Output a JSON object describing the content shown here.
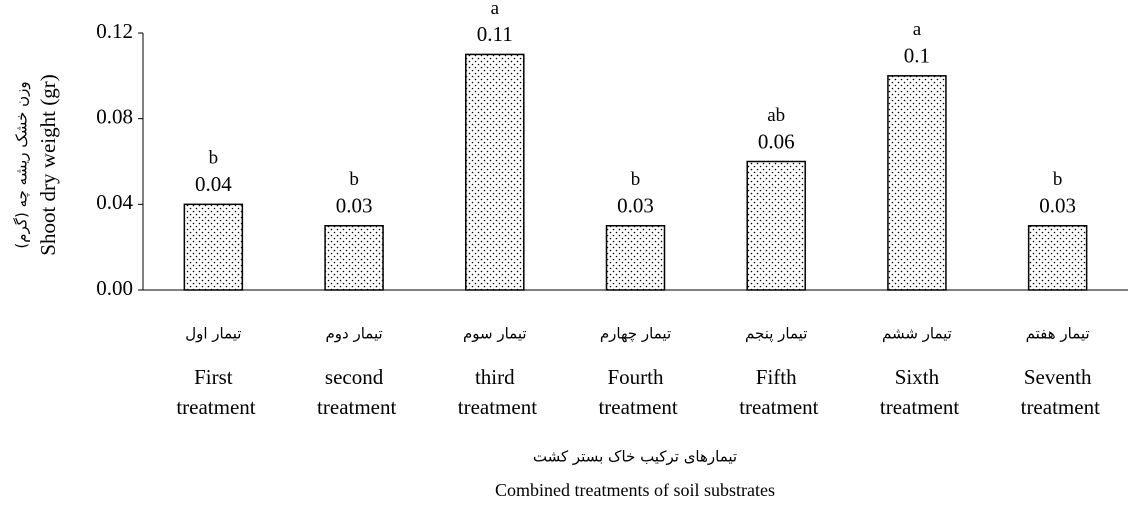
{
  "chart_data": {
    "type": "bar",
    "y_label_fa": "وزن خشک ریشه چه (گرم)",
    "y_label": "Shoot dry weight (gr)",
    "x_label_fa": "تیمارهای ترکیب خاک بستر کشت",
    "x_label": "Combined treatments of soil substrates",
    "categories_fa": [
      "تیمار اول",
      "تیمار دوم",
      "تیمار سوم",
      "تیمار چهارم",
      "تیمار پنجم",
      "تیمار ششم",
      "تیمار هفتم"
    ],
    "categories": [
      "First treatment",
      "second treatment",
      "third treatment",
      "Fourth treatment",
      "Fifth treatment",
      "Sixth treatment",
      "Seventh treatment"
    ],
    "values": [
      0.04,
      0.03,
      0.11,
      0.03,
      0.06,
      0.1,
      0.03
    ],
    "letters": [
      "b",
      "b",
      "a",
      "b",
      "ab",
      "a",
      "b"
    ],
    "color": "#000000",
    "ylim": [
      0,
      0.12
    ],
    "yticks": [
      {
        "value": 0,
        "label": "0.00"
      },
      0.04,
      0.08,
      0.12
    ]
  }
}
